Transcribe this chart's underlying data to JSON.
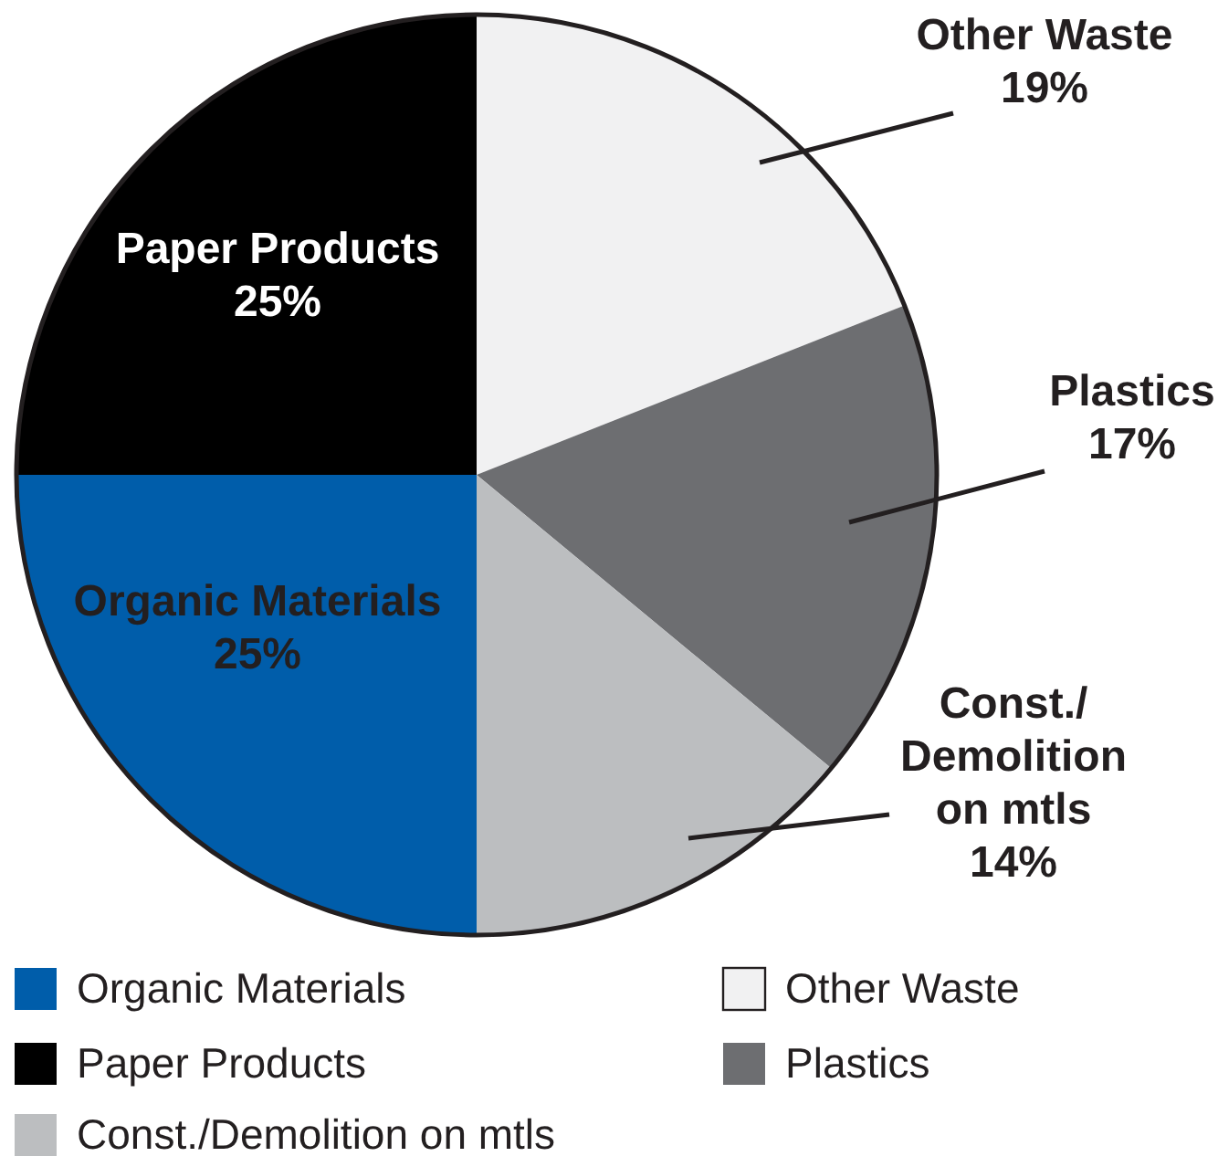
{
  "chart_data": {
    "type": "pie",
    "categories": [
      "Other Waste",
      "Plastics",
      "Const./Demolition on mtls",
      "Organic Materials",
      "Paper Products"
    ],
    "values": [
      19,
      17,
      14,
      25,
      25
    ],
    "colors": [
      "#f1f1f2",
      "#6d6e71",
      "#bcbec0",
      "#005daa",
      "#000000"
    ],
    "value_labels": [
      "19%",
      "17%",
      "14%",
      "25%",
      "25%"
    ],
    "legend": "bottom"
  }
}
